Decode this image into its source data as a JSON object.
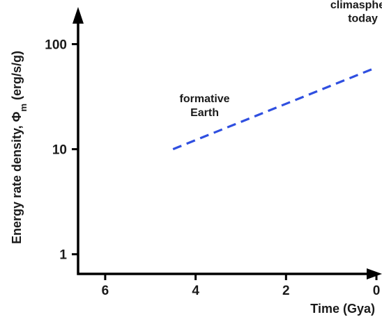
{
  "chart_data": {
    "type": "line",
    "title": "",
    "xlabel": "Time (Gya)",
    "ylabel": "Energy rate density, Φm (erg/s/g)",
    "ylabel_parts": {
      "pre": "Energy rate density, Φ",
      "sub": "m",
      "post": " (erg/s/g)"
    },
    "x_reversed": true,
    "xlim": [
      6.6,
      0
    ],
    "x_ticks": [
      {
        "value": 6,
        "label": "6"
      },
      {
        "value": 4,
        "label": "4"
      },
      {
        "value": 2,
        "label": "2"
      },
      {
        "value": 0,
        "label": "0"
      }
    ],
    "y_scale": "log",
    "ylim": [
      0.65,
      200
    ],
    "y_ticks": [
      {
        "value": 1,
        "label": "1"
      },
      {
        "value": 10,
        "label": "10"
      },
      {
        "value": 100,
        "label": "100"
      }
    ],
    "grid": false,
    "series": [
      {
        "style": "dashed",
        "color": "#2f4fe0",
        "x": [
          4.5,
          0
        ],
        "y": [
          10,
          60
        ]
      }
    ],
    "annotations": [
      {
        "lines": [
          "formative",
          "Earth"
        ],
        "x": 3.8,
        "y": 28
      },
      {
        "lines": [
          "climasphere",
          "today"
        ],
        "x": 0.3,
        "y": 220
      }
    ]
  }
}
